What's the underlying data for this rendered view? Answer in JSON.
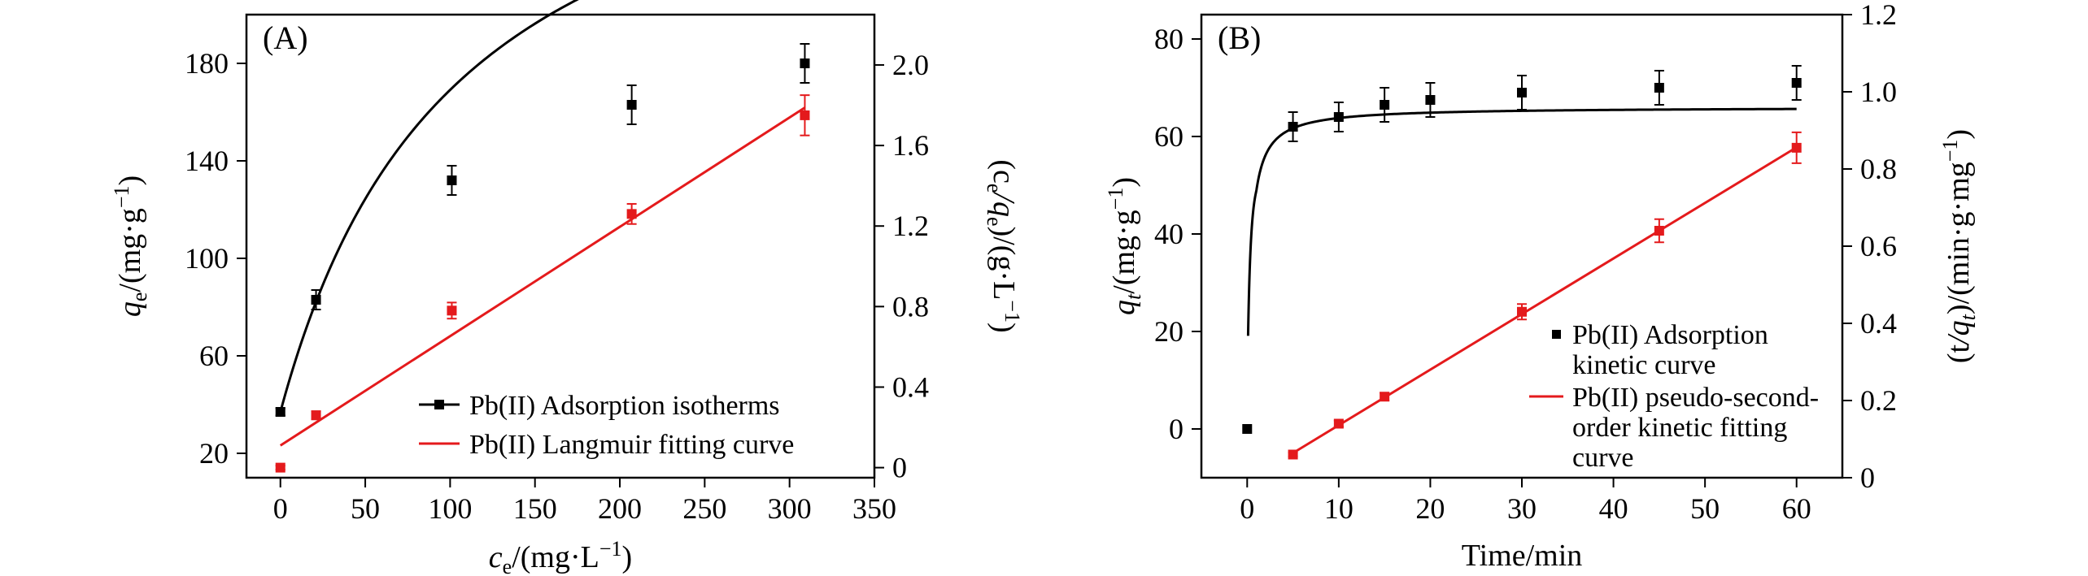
{
  "chart_data": [
    {
      "panel_label": "(A)",
      "type": "line+scatter",
      "xlabel": "c_e/(mg·L^-1)",
      "ylabel": "q_e/(mg·g^-1)",
      "y2label": "(c_e/q_e)/(g·L^-1)",
      "xlabel_parts": {
        "main": "c",
        "sub": "e",
        "mid": "/(mg·L",
        "sup": "−1",
        "end": ")"
      },
      "ylabel_parts": {
        "main": "q",
        "sub": "e",
        "mid": "/(mg·g",
        "sup": "−1",
        "end": ")"
      },
      "y2label_parts": {
        "p1": "(c",
        "sub1": "e",
        "p2": "/q",
        "sub2": "e",
        "p3": ")/(g·L",
        "sup": "−1",
        "end": ")"
      },
      "xlim": [
        -20,
        350
      ],
      "ylim": [
        10,
        200
      ],
      "y2lim": [
        -0.05,
        2.25
      ],
      "xticks": [
        0,
        50,
        100,
        150,
        200,
        250,
        300,
        350
      ],
      "yticks": [
        20,
        60,
        100,
        140,
        180
      ],
      "y2ticks": [
        0,
        0.4,
        0.8,
        1.2,
        1.6,
        2.0
      ],
      "y2tick_labels": [
        "0",
        "0.4",
        "0.8",
        "1.2",
        "1.6",
        "2.0"
      ],
      "series": [
        {
          "name": "Pb(II) Adsorption isotherms",
          "axis": "left",
          "color": "#000000",
          "marker": "square",
          "x": [
            0,
            21,
            101,
            207,
            309
          ],
          "y": [
            37,
            83,
            132,
            163,
            180
          ],
          "yerr": [
            1.5,
            4,
            6,
            8,
            8
          ],
          "fit_curve": {
            "model": "langmuir",
            "qmax": 242,
            "KL": 0.00954,
            "offset": 37
          }
        },
        {
          "name": "Pb(II) Langmuir fitting curve",
          "axis": "right",
          "color": "#e41a1c",
          "marker": "square",
          "x": [
            0,
            21,
            101,
            207,
            309
          ],
          "y": [
            0.0,
            0.26,
            0.78,
            1.26,
            1.75
          ],
          "yerr": [
            0.01,
            0.02,
            0.04,
            0.05,
            0.1
          ],
          "fit_line": {
            "slope": 0.00543,
            "intercept": 0.11,
            "x_range": [
              0,
              309
            ]
          }
        }
      ],
      "legend": [
        {
          "label": "Pb(II) Adsorption isotherms",
          "color": "#000000",
          "style": "line-marker"
        },
        {
          "label": "Pb(II) Langmuir fitting curve",
          "color": "#e41a1c",
          "style": "line"
        }
      ]
    },
    {
      "panel_label": "(B)",
      "type": "line+scatter",
      "xlabel": "Time/min",
      "ylabel": "q_t/(mg·g^-1)",
      "y2label": "(t/q_t)/(min·g·mg^-1)",
      "ylabel_parts": {
        "main": "q",
        "sub": "t",
        "mid": "/(mg·g",
        "sup": "−1",
        "end": ")"
      },
      "y2label_parts": {
        "p1": "(t",
        "p2": "/q",
        "sub": "t",
        "p3": ")/(min·g·mg",
        "sup": "−1",
        "end": ")"
      },
      "xlim": [
        -5,
        65
      ],
      "ylim": [
        -10,
        85
      ],
      "y2lim": [
        0,
        1.2
      ],
      "xticks": [
        0,
        10,
        20,
        30,
        40,
        50,
        60
      ],
      "yticks": [
        0,
        20,
        40,
        60,
        80
      ],
      "y2ticks": [
        0,
        0.2,
        0.4,
        0.6,
        0.8,
        1.0,
        1.2
      ],
      "y2tick_labels": [
        "0",
        "0.2",
        "0.4",
        "0.6",
        "0.8",
        "1.0",
        "1.2"
      ],
      "series": [
        {
          "name": "Pb(II) Adsorption kinetic curve",
          "axis": "left",
          "color": "#000000",
          "marker": "square",
          "x": [
            0,
            5,
            10,
            15,
            20,
            30,
            45,
            60
          ],
          "y": [
            0,
            62,
            64,
            66.5,
            67.5,
            69,
            70,
            71
          ],
          "yerr": [
            0,
            3,
            3,
            3.5,
            3.5,
            3.5,
            3.5,
            3.5
          ],
          "fit_curve": {
            "model": "pseudo-second-order",
            "qe": 71,
            "k": 0.04,
            "x_start": 0.1,
            "x_end": 60
          }
        },
        {
          "name": "Pb(II) pseudo-second-order kinetic fitting curve",
          "axis": "right",
          "color": "#e41a1c",
          "marker": "square",
          "x": [
            5,
            10,
            15,
            30,
            45,
            60
          ],
          "y": [
            0.06,
            0.14,
            0.21,
            0.43,
            0.64,
            0.855
          ],
          "yerr": [
            0.005,
            0.008,
            0.01,
            0.02,
            0.03,
            0.04
          ],
          "fit_line": {
            "slope": 0.0144,
            "intercept": -0.008,
            "x_range": [
              5,
              60
            ]
          }
        }
      ],
      "legend": [
        {
          "label_lines": [
            "Pb(II) Adsorption",
            "kinetic curve"
          ],
          "color": "#000000",
          "style": "marker"
        },
        {
          "label_lines": [
            "Pb(II) pseudo-second-",
            "order kinetic fitting",
            "curve"
          ],
          "color": "#e41a1c",
          "style": "line"
        }
      ]
    }
  ]
}
